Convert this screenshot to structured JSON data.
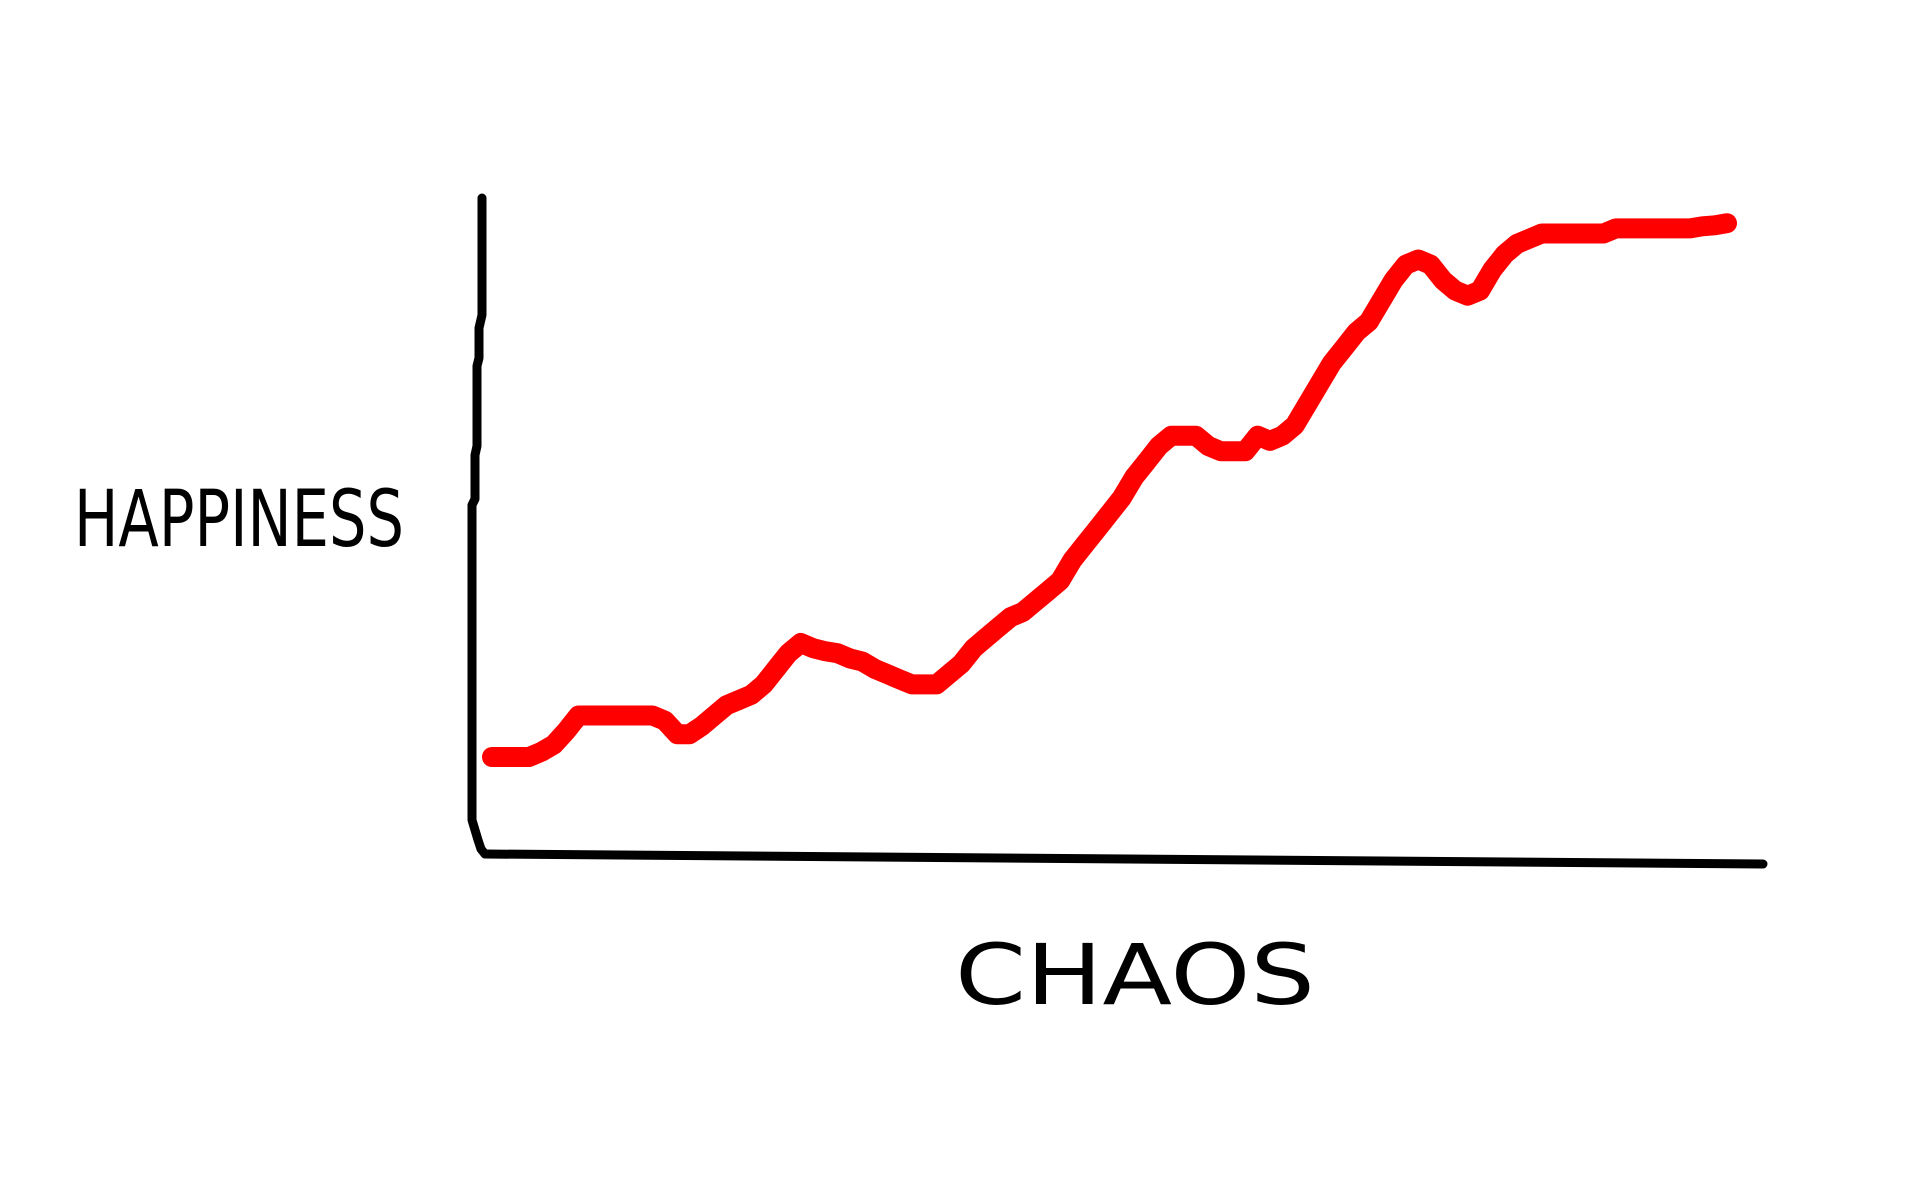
{
  "chart_data": {
    "type": "line",
    "title": "",
    "xlabel": "CHAOS",
    "ylabel": "HAPPINESS",
    "grid": false,
    "legend": "none",
    "x": [
      0,
      3,
      4,
      5,
      6,
      7,
      7.5,
      8,
      9,
      10,
      11,
      12,
      13,
      14,
      15,
      16,
      17,
      18,
      19,
      20,
      21,
      22,
      23,
      24,
      25,
      26,
      27,
      28,
      29,
      30,
      31,
      32,
      33,
      34,
      35,
      36,
      37,
      38,
      39,
      40,
      41,
      42,
      43,
      44,
      45,
      46,
      47,
      48,
      49,
      50,
      51,
      52,
      53,
      54,
      55,
      56,
      57,
      58,
      59,
      60,
      61,
      62,
      63,
      64,
      65,
      66,
      67,
      68,
      69,
      70,
      71,
      72,
      73,
      74,
      75,
      76,
      77,
      78,
      79,
      80,
      81,
      82,
      83,
      84,
      85,
      86,
      87,
      88,
      89,
      90,
      91,
      92,
      93,
      94,
      95,
      96,
      97,
      98,
      99,
      100
    ],
    "series": [
      {
        "color": "#ff0000",
        "values": [
          0,
          0,
          0.5,
          1.2,
          2.5,
          4,
          4,
          4,
          4,
          4,
          4,
          4,
          4,
          3.5,
          2.2,
          2.2,
          3,
          4,
          5,
          5.5,
          6,
          7,
          8.5,
          10,
          11,
          10.5,
          10.2,
          10,
          9.5,
          9.2,
          8.5,
          8,
          7.5,
          7,
          7,
          7,
          8,
          9,
          10.5,
          11.5,
          12.5,
          13.5,
          14,
          15,
          16,
          17,
          19,
          20.5,
          22,
          23.5,
          25,
          27,
          28.5,
          30,
          31,
          31,
          31,
          30,
          29.5,
          29.5,
          29.5,
          31,
          30.5,
          31,
          32,
          34,
          36,
          38,
          39.5,
          41,
          42,
          44,
          46,
          47.5,
          48,
          47.5,
          46,
          45,
          44.5,
          45,
          47,
          48.5,
          49.5,
          50,
          50.5,
          50.5,
          50.5,
          50.5,
          50.5,
          50.5,
          51,
          51,
          51,
          51,
          51,
          51,
          51,
          51.2,
          51.3,
          51.5
        ]
      }
    ]
  }
}
